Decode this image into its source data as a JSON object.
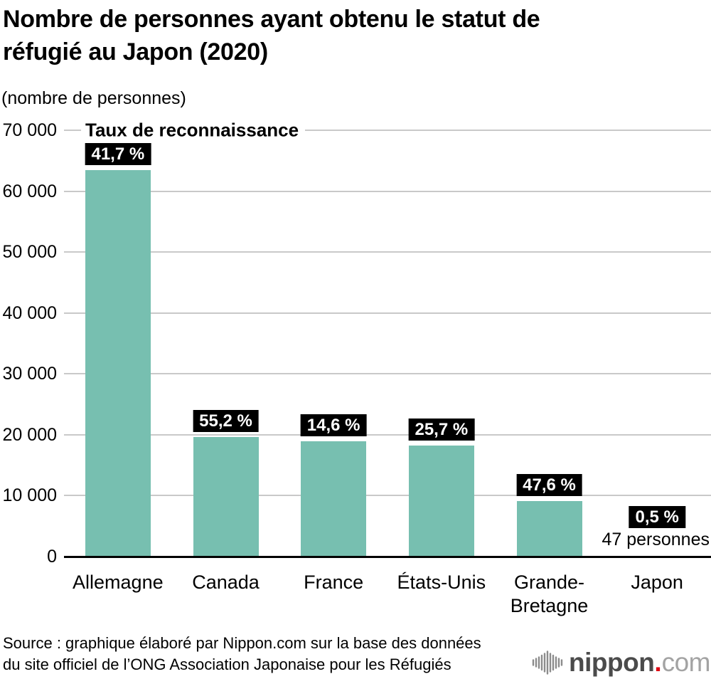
{
  "header": {
    "title_lines": [
      "Nombre de personnes ayant obtenu le statut de",
      "réfugié au Japon (2020)"
    ],
    "unit_label": "(nombre de personnes)"
  },
  "chart_data": {
    "type": "bar",
    "title": "Nombre de personnes ayant obtenu le statut de réfugié au Japon (2020)",
    "unit_label": "(nombre de personnes)",
    "legend": "Taux de reconnaissance",
    "legend_position": "top-left",
    "categories": [
      "Allemagne",
      "Canada",
      "France",
      "États-Unis",
      "Grande-\nBretagne",
      "Japon"
    ],
    "values": [
      63500,
      19600,
      18900,
      18200,
      9100,
      47
    ],
    "recognition_rate_labels": [
      "41,7 %",
      "55,2 %",
      "14,6 %",
      "25,7 %",
      "47,6 %",
      "0,5 %"
    ],
    "recognition_rates_percent": [
      41.7,
      55.2,
      14.6,
      25.7,
      47.6,
      0.5
    ],
    "annotations": [
      null,
      null,
      null,
      null,
      null,
      "47 personnes"
    ],
    "ylim": [
      0,
      70000
    ],
    "yticks": [
      0,
      10000,
      20000,
      30000,
      40000,
      50000,
      60000,
      70000
    ],
    "ytick_labels": [
      "0",
      "10 000",
      "20 000",
      "30 000",
      "40 000",
      "50 000",
      "60 000",
      "70 000"
    ],
    "grid": true,
    "bar_color": "#77bfb0",
    "gridline_color": "#c9c9c9",
    "axis_color": "#000000",
    "rate_label_bg": "#000000",
    "rate_label_fg": "#ffffff"
  },
  "footer": {
    "source_lines": [
      "Source : graphique élaboré par Nippon.com sur la base des données",
      "du site officiel de l’ONG Association Japonaise pour les Réfugiés"
    ],
    "logo": {
      "word": "nippon",
      "dot": ".",
      "tld": "com",
      "word_color": "#4b4b4b",
      "dot_color": "#df0012",
      "tld_color": "#a3a3a3"
    }
  }
}
